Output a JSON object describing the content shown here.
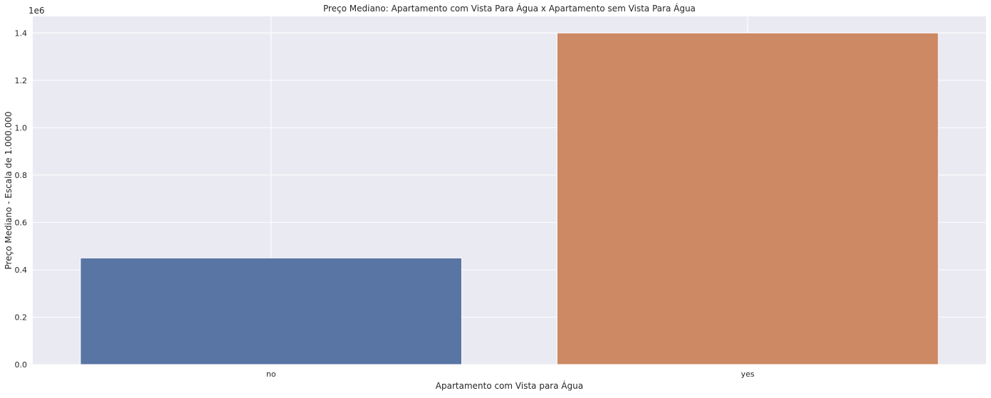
{
  "chart_data": {
    "type": "bar",
    "title": "Preço Mediano: Apartamento com Vista Para Água x Apartamento sem Vista Para Água",
    "xlabel": "Apartamento com Vista para Água",
    "ylabel": "Preço Mediano - Escala de 1.000.000",
    "offset_label": "1e6",
    "categories": [
      "no",
      "yes"
    ],
    "values": [
      450000,
      1400000
    ],
    "bar_colors": [
      "#5975a4",
      "#cc8963"
    ],
    "ylim": [
      0,
      1470000
    ],
    "yticks": [
      0,
      200000,
      400000,
      600000,
      800000,
      1000000,
      1200000,
      1400000
    ],
    "ytick_labels": [
      "0.0",
      "0.2",
      "0.4",
      "0.6",
      "0.8",
      "1.0",
      "1.2",
      "1.4"
    ],
    "grid": true,
    "background_color": "#eaeaf2",
    "grid_color": "#ffffff"
  }
}
